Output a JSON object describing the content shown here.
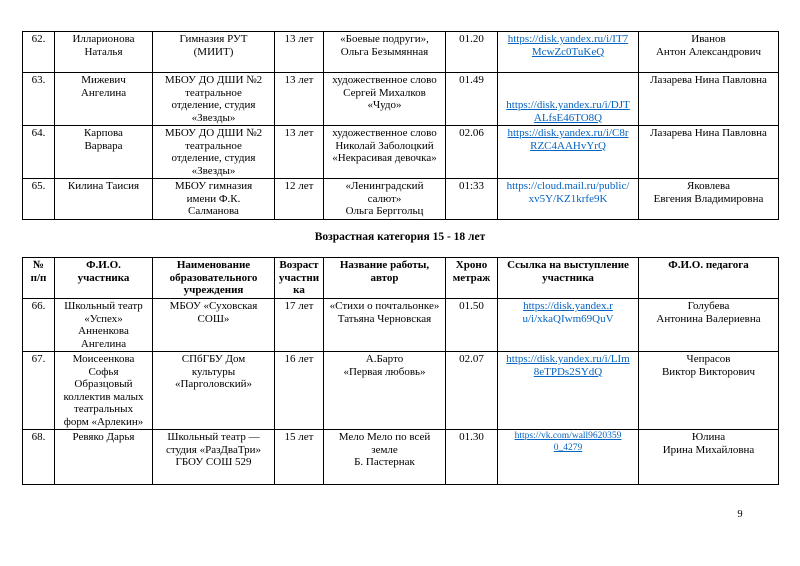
{
  "page_number": "9",
  "section_heading": "Возрастная категория 15 - 18 лет",
  "colors": {
    "link_blue": "#0563C1",
    "text": "#000000",
    "table_border": "#000000"
  },
  "column_headers": {
    "num": "№\nп/п",
    "name": "Ф.И.О.\nучастника",
    "school": "Наименование\nобразовательного\nучреждения",
    "age": "Возраст\nучастни\nка",
    "work": "Название работы,\nавтор",
    "time": "Хроно\nметраж",
    "link": "Ссылка на выступление\nучастника",
    "teacher": "Ф.И.О. педагога"
  },
  "tables": [
    {
      "name": "participants-continued",
      "has_headers": false,
      "rows": [
        {
          "num": "62.",
          "name": "Илларионова\nНаталья",
          "school": "Гимназия РУТ\n(МИИТ)",
          "age": "13 лет",
          "work": "«Боевые подруги»,\nОльга Безымянная",
          "time": "01.20",
          "link": {
            "url": "https://disk.yandex.ru/i/IT7McwZc0TuKeQ",
            "lines": [
              "https://disk.yandex.ru/i/IT7",
              "McwZc0TuKeQ"
            ],
            "underline": [
              true,
              true
            ],
            "small": false
          },
          "teacher": "Иванов\nАнтон Александрович"
        },
        {
          "num": "63.",
          "name": "Мижевич\nАнгелина",
          "school": "МБОУ ДО ДШИ №2\nтеатральное\nотделение, студия\n«Звезды»",
          "age": "13 лет",
          "work": "художественное слово\nСергей Михалков\n«Чудо»",
          "time": "01.49",
          "link": {
            "url": "https://disk.yandex.ru/i/DJTALfsE46TO8Q",
            "lines": [
              "",
              "",
              "https://disk.yandex.ru/i/DJT",
              "ALfsE46TO8Q"
            ],
            "underline": [
              false,
              false,
              true,
              true
            ],
            "small": false
          },
          "teacher": "Лазарева Нина Павловна"
        },
        {
          "num": "64.",
          "name": "Карпова\nВарвара",
          "school": "МБОУ ДО ДШИ №2\nтеатральное\nотделение, студия\n«Звезды»",
          "age": "13 лет",
          "work": "художественное слово\nНиколай Заболоцкий\n«Некрасивая девочка»",
          "time": "02.06",
          "link": {
            "url": "https://disk.yandex.ru/i/C8rRZC4AAHvYrQ",
            "lines": [
              "https://disk.yandex.ru/i/C8r",
              "RZC4AAHvYrQ"
            ],
            "underline": [
              true,
              true
            ],
            "small": false
          },
          "teacher": "Лазарева Нина Павловна"
        },
        {
          "num": "65.",
          "name": "Килина  Таисия",
          "school": "МБОУ гимназия\nимени Ф.К.\nСалманова",
          "age": "12 лет",
          "work": "«Ленинградский\nсалют»\nОльга Берггольц",
          "time": "01:33",
          "link": {
            "url": "https://cloud.mail.ru/public/xv5Y/KZ1krfe9K",
            "lines": [
              "https://cloud.mail.ru/public/",
              "xv5Y/KZ1krfe9K"
            ],
            "underline": [
              false,
              false
            ],
            "small": false
          },
          "teacher": "Яковлева\nЕвгения Владимировна"
        }
      ]
    },
    {
      "name": "participants-15-18",
      "has_headers": true,
      "rows": [
        {
          "num": "66.",
          "name": "Школьный театр\n«Успех»\nАнненкова\nАнгелина",
          "school": "МБОУ «Суховская\nСОШ»",
          "age": "17 лет",
          "work": "«Стихи о почтальонке»\nТатьяна Черновская",
          "time": "01.50",
          "link": {
            "url": "https://disk.yandex.ru/i/xkaQIwm69QuV",
            "lines": [
              "https://disk.yandex.r",
              "u/i/xkaQIwm69QuV"
            ],
            "underline": [
              true,
              false
            ],
            "small": false
          },
          "teacher": "Голубева\nАнтонина Валериевна"
        },
        {
          "num": "67.",
          "name": "Моисеенкова\nСофья\nОбразцовый\nколлектив малых\nтеатральных\nформ «Арлекин»",
          "school": "СПбГБУ Дом\nкультуры\n«Парголовский»",
          "age": "16 лет",
          "work": "А.Барто\n«Первая любовь»",
          "time": "02.07",
          "link": {
            "url": "https://disk.yandex.ru/i/LIm8eTPDs2SYdQ",
            "lines": [
              "https://disk.yandex.ru/i/LIm",
              "8eTPDs2SYdQ"
            ],
            "underline": [
              true,
              true
            ],
            "small": false
          },
          "teacher": "Чепрасов\nВиктор Викторович"
        },
        {
          "num": "68.",
          "name": "Ревяко Дарья",
          "school": "Школьный театр —\nстудия «РазДваТри»\nГБОУ СОШ 529",
          "age": "15 лет",
          "work": "Мело Мело по всей\nземле\nБ. Пастернак",
          "time": "01.30",
          "link": {
            "url": "https://vk.com/wall96203590_4279",
            "lines": [
              "https://vk.com/wall9620359",
              "0_4279"
            ],
            "underline": [
              true,
              true
            ],
            "small": true
          },
          "teacher": "Юлина\nИрина Михайловна"
        }
      ]
    }
  ]
}
